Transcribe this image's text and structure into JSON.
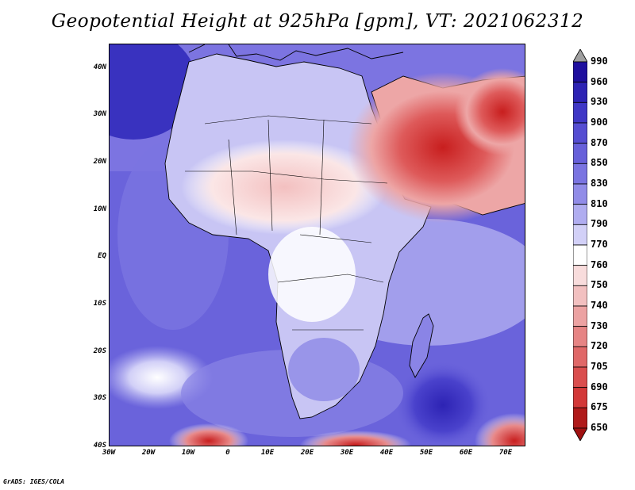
{
  "title": "Geopotential Height at 925hPa [gpm], VT: 2021062312",
  "footer": "GrADS: IGES/COLA",
  "map": {
    "variable": "Geopotential Height",
    "level": "925hPa",
    "units": "gpm",
    "valid_time": "2021062312",
    "lon_range": [
      -30,
      75
    ],
    "lat_range": [
      -40,
      45
    ],
    "lon_ticks": [
      "30W",
      "20W",
      "10W",
      "0",
      "10E",
      "20E",
      "30E",
      "40E",
      "50E",
      "60E",
      "70E"
    ],
    "lat_ticks": [
      "40N",
      "30N",
      "20N",
      "10N",
      "EQ",
      "10S",
      "20S",
      "30S",
      "40S"
    ]
  },
  "colorbar": {
    "levels": [
      "990",
      "960",
      "930",
      "900",
      "870",
      "850",
      "830",
      "810",
      "790",
      "770",
      "760",
      "750",
      "740",
      "730",
      "720",
      "705",
      "690",
      "675",
      "650"
    ],
    "colors": [
      "#a0a0a0",
      "#1e0f9e",
      "#2d23b4",
      "#3f37c6",
      "#554dd2",
      "#6760da",
      "#7a74e1",
      "#918ce8",
      "#b0adf0",
      "#d2d0f7",
      "#ffffff",
      "#f8dcdc",
      "#f2c0c0",
      "#eca2a2",
      "#e68484",
      "#e06868",
      "#da4e4e",
      "#d33838",
      "#b01a1a",
      "#a01010"
    ]
  }
}
